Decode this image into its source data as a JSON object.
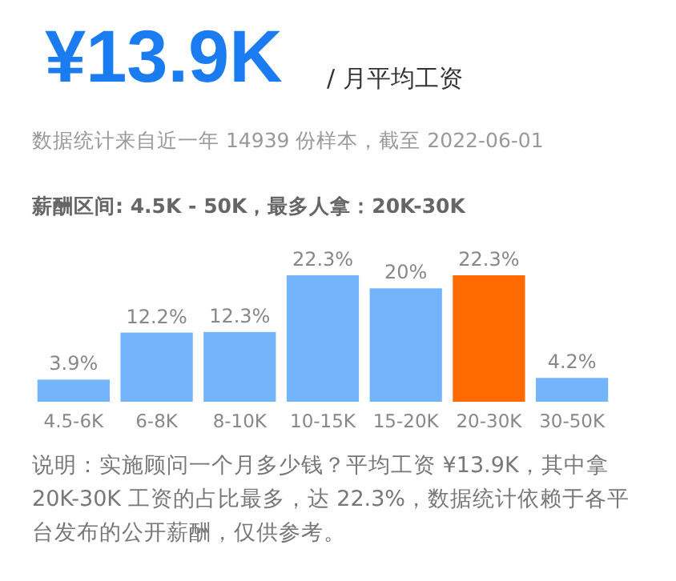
{
  "chart_data": {
    "type": "bar",
    "title": "¥13.9K",
    "subtitle": "/ 月平均工资",
    "annotations": [
      "数据统计来自近一年 14939 份样本，截至 2022-06-01",
      "薪酬区间: 4.5K - 50K，最多人拿：20K-30K",
      "说明：实施顾问一个月多少钱？平均工资 ¥13.9K，其中拿20K-30K 工资的占比最多，达 22.3%，数据统计依赖于各平台发布的公开薪酬，仅供参考。"
    ],
    "categories": [
      "4.5-6K",
      "6-8K",
      "8-10K",
      "10-15K",
      "15-20K",
      "20-30K",
      "30-50K"
    ],
    "values": [
      3.9,
      12.2,
      12.3,
      22.3,
      20,
      22.3,
      4.2
    ],
    "colors": [
      "#74b4fa",
      "#74b4fa",
      "#74b4fa",
      "#74b4fa",
      "#74b4fa",
      "#ff6a00",
      "#74b4fa"
    ],
    "value_labels": [
      "3.9%",
      "12.2%",
      "12.3%",
      "22.3%",
      "20%",
      "22.3%",
      "4.2%"
    ]
  }
}
